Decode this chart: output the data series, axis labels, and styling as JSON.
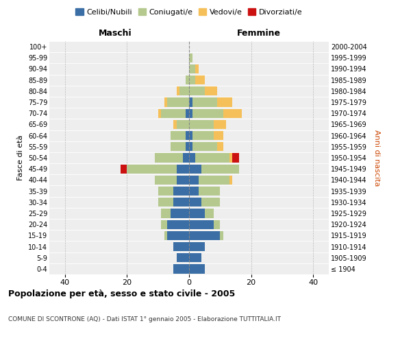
{
  "age_groups": [
    "100+",
    "95-99",
    "90-94",
    "85-89",
    "80-84",
    "75-79",
    "70-74",
    "65-69",
    "60-64",
    "55-59",
    "50-54",
    "45-49",
    "40-44",
    "35-39",
    "30-34",
    "25-29",
    "20-24",
    "15-19",
    "10-14",
    "5-9",
    "0-4"
  ],
  "birth_years": [
    "≤ 1904",
    "1905-1909",
    "1910-1914",
    "1915-1919",
    "1920-1924",
    "1925-1929",
    "1930-1934",
    "1935-1939",
    "1940-1944",
    "1945-1949",
    "1950-1954",
    "1955-1959",
    "1960-1964",
    "1965-1969",
    "1970-1974",
    "1975-1979",
    "1980-1984",
    "1985-1989",
    "1990-1994",
    "1995-1999",
    "2000-2004"
  ],
  "colors": {
    "celibi": "#3a6ea5",
    "coniugati": "#b5c98e",
    "vedovi": "#f5c05a",
    "divorziati": "#cc1111"
  },
  "males": {
    "celibi": [
      0,
      0,
      0,
      0,
      0,
      0,
      1,
      0,
      1,
      1,
      2,
      4,
      4,
      5,
      5,
      6,
      7,
      7,
      5,
      4,
      5
    ],
    "coniugati": [
      0,
      0,
      0,
      1,
      3,
      7,
      8,
      4,
      5,
      5,
      9,
      16,
      7,
      5,
      5,
      3,
      2,
      1,
      0,
      0,
      0
    ],
    "vedovi": [
      0,
      0,
      0,
      0,
      1,
      1,
      1,
      1,
      0,
      0,
      0,
      0,
      0,
      0,
      0,
      0,
      0,
      0,
      0,
      0,
      0
    ],
    "divorziati": [
      0,
      0,
      0,
      0,
      0,
      0,
      0,
      0,
      0,
      0,
      0,
      2,
      0,
      0,
      0,
      0,
      0,
      0,
      0,
      0,
      0
    ]
  },
  "females": {
    "celibi": [
      0,
      0,
      0,
      0,
      0,
      1,
      1,
      0,
      1,
      1,
      2,
      4,
      3,
      3,
      4,
      5,
      8,
      10,
      5,
      4,
      5
    ],
    "coniugati": [
      0,
      1,
      2,
      2,
      5,
      8,
      10,
      8,
      7,
      8,
      11,
      12,
      10,
      7,
      6,
      3,
      2,
      1,
      0,
      0,
      0
    ],
    "vedovi": [
      0,
      0,
      1,
      3,
      4,
      5,
      6,
      4,
      3,
      2,
      1,
      0,
      1,
      0,
      0,
      0,
      0,
      0,
      0,
      0,
      0
    ],
    "divorziati": [
      0,
      0,
      0,
      0,
      0,
      0,
      0,
      0,
      0,
      0,
      2,
      0,
      0,
      0,
      0,
      0,
      0,
      0,
      0,
      0,
      0
    ]
  },
  "xlim": 45,
  "title": "Popolazione per età, sesso e stato civile - 2005",
  "subtitle": "COMUNE DI SCONTRONE (AQ) - Dati ISTAT 1° gennaio 2005 - Elaborazione TUTTITALIA.IT",
  "xlabel_left": "Maschi",
  "xlabel_right": "Femmine",
  "ylabel_left": "Fasce di età",
  "ylabel_right": "Anni di nascita",
  "legend_labels": [
    "Celibi/Nubili",
    "Coniugati/e",
    "Vedovi/e",
    "Divorziati/e"
  ],
  "background_color": "#eeeeee",
  "grid_color": "#cccccc",
  "fig_width": 6.0,
  "fig_height": 5.0,
  "dpi": 100
}
